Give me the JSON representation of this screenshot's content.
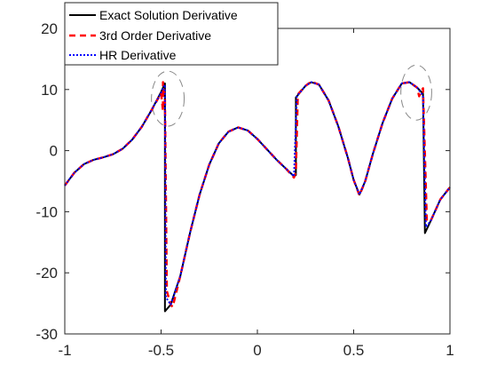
{
  "chart_data": {
    "type": "line",
    "title": "",
    "xlabel": "",
    "ylabel": "",
    "xlim": [
      -1,
      1
    ],
    "ylim": [
      -30,
      20
    ],
    "xticks": [
      -1,
      -0.5,
      0,
      0.5,
      1
    ],
    "xtick_labels": [
      "-1",
      "-0.5",
      "0",
      "0.5",
      "1"
    ],
    "yticks": [
      -30,
      -20,
      -10,
      0,
      10,
      20
    ],
    "ytick_labels": [
      "-30",
      "-20",
      "-10",
      "0",
      "10",
      "20"
    ],
    "grid": false,
    "legend_position": "top-left",
    "series": [
      {
        "name": "Exact Solution Derivative",
        "color": "#000000",
        "style": "solid",
        "points": [
          [
            -1,
            -5.7
          ],
          [
            -0.95,
            -3.6
          ],
          [
            -0.9,
            -2.2
          ],
          [
            -0.85,
            -1.5
          ],
          [
            -0.8,
            -1.1
          ],
          [
            -0.75,
            -0.6
          ],
          [
            -0.7,
            0.3
          ],
          [
            -0.65,
            1.8
          ],
          [
            -0.6,
            3.9
          ],
          [
            -0.55,
            6.6
          ],
          [
            -0.5,
            9.6
          ],
          [
            -0.48,
            11.0
          ],
          [
            -0.48,
            -26.3
          ],
          [
            -0.45,
            -25.2
          ],
          [
            -0.4,
            -20.5
          ],
          [
            -0.35,
            -13.5
          ],
          [
            -0.3,
            -7.2
          ],
          [
            -0.25,
            -2.3
          ],
          [
            -0.2,
            1.2
          ],
          [
            -0.15,
            3.1
          ],
          [
            -0.1,
            3.8
          ],
          [
            -0.05,
            3.3
          ],
          [
            0,
            1.9
          ],
          [
            0.05,
            0.2
          ],
          [
            0.1,
            -1.5
          ],
          [
            0.15,
            -3.0
          ],
          [
            0.19,
            -4.2
          ],
          [
            0.2,
            -4.0
          ],
          [
            0.2,
            8.7
          ],
          [
            0.25,
            10.6
          ],
          [
            0.28,
            11.2
          ],
          [
            0.32,
            10.8
          ],
          [
            0.37,
            8.2
          ],
          [
            0.42,
            4.0
          ],
          [
            0.47,
            -1.2
          ],
          [
            0.5,
            -4.8
          ],
          [
            0.53,
            -7.2
          ],
          [
            0.56,
            -5.0
          ],
          [
            0.6,
            -0.5
          ],
          [
            0.65,
            4.5
          ],
          [
            0.7,
            8.5
          ],
          [
            0.75,
            11.0
          ],
          [
            0.79,
            11.2
          ],
          [
            0.83,
            10.3
          ],
          [
            0.86,
            9.3
          ],
          [
            0.87,
            -13.5
          ],
          [
            0.9,
            -11.5
          ],
          [
            0.95,
            -8.0
          ],
          [
            1,
            -6.0
          ]
        ]
      },
      {
        "name": "3rd Order Derivative",
        "color": "#ff0000",
        "style": "dashed",
        "points": [
          [
            -1,
            -5.7
          ],
          [
            -0.95,
            -3.6
          ],
          [
            -0.9,
            -2.2
          ],
          [
            -0.85,
            -1.5
          ],
          [
            -0.8,
            -1.1
          ],
          [
            -0.75,
            -0.6
          ],
          [
            -0.7,
            0.3
          ],
          [
            -0.65,
            1.8
          ],
          [
            -0.6,
            3.9
          ],
          [
            -0.55,
            6.6
          ],
          [
            -0.5,
            9.4
          ],
          [
            -0.49,
            6.5
          ],
          [
            -0.49,
            11.2
          ],
          [
            -0.48,
            8.5
          ],
          [
            -0.47,
            -23.0
          ],
          [
            -0.45,
            -25.2
          ],
          [
            -0.44,
            -25.6
          ],
          [
            -0.4,
            -20.5
          ],
          [
            -0.35,
            -13.5
          ],
          [
            -0.3,
            -7.2
          ],
          [
            -0.25,
            -2.3
          ],
          [
            -0.2,
            1.2
          ],
          [
            -0.15,
            3.1
          ],
          [
            -0.1,
            3.8
          ],
          [
            -0.05,
            3.3
          ],
          [
            0,
            1.9
          ],
          [
            0.05,
            0.2
          ],
          [
            0.1,
            -1.5
          ],
          [
            0.15,
            -3.0
          ],
          [
            0.19,
            -4.4
          ],
          [
            0.2,
            -3.5
          ],
          [
            0.21,
            9.2
          ],
          [
            0.25,
            10.6
          ],
          [
            0.28,
            11.3
          ],
          [
            0.32,
            10.8
          ],
          [
            0.37,
            8.2
          ],
          [
            0.42,
            4.0
          ],
          [
            0.47,
            -1.2
          ],
          [
            0.5,
            -4.8
          ],
          [
            0.53,
            -7.3
          ],
          [
            0.56,
            -5.0
          ],
          [
            0.6,
            -0.5
          ],
          [
            0.65,
            4.5
          ],
          [
            0.7,
            8.5
          ],
          [
            0.75,
            11.0
          ],
          [
            0.79,
            11.2
          ],
          [
            0.83,
            10.3
          ],
          [
            0.84,
            8.9
          ],
          [
            0.86,
            10.2
          ],
          [
            0.88,
            -11.5
          ],
          [
            0.9,
            -11.5
          ],
          [
            0.95,
            -8.0
          ],
          [
            1,
            -6.0
          ]
        ]
      },
      {
        "name": "HR Derivative",
        "color": "#0000ff",
        "style": "dotted",
        "points": [
          [
            -1,
            -5.7
          ],
          [
            -0.95,
            -3.6
          ],
          [
            -0.9,
            -2.2
          ],
          [
            -0.85,
            -1.5
          ],
          [
            -0.8,
            -1.1
          ],
          [
            -0.75,
            -0.6
          ],
          [
            -0.7,
            0.3
          ],
          [
            -0.65,
            1.8
          ],
          [
            -0.6,
            3.9
          ],
          [
            -0.55,
            6.6
          ],
          [
            -0.5,
            9.5
          ],
          [
            -0.48,
            10.8
          ],
          [
            -0.475,
            -24.0
          ],
          [
            -0.45,
            -25.2
          ],
          [
            -0.4,
            -20.5
          ],
          [
            -0.35,
            -13.5
          ],
          [
            -0.3,
            -7.2
          ],
          [
            -0.25,
            -2.3
          ],
          [
            -0.2,
            1.2
          ],
          [
            -0.15,
            3.1
          ],
          [
            -0.1,
            3.8
          ],
          [
            -0.05,
            3.3
          ],
          [
            0,
            1.9
          ],
          [
            0.05,
            0.2
          ],
          [
            0.1,
            -1.5
          ],
          [
            0.15,
            -3.0
          ],
          [
            0.19,
            -4.2
          ],
          [
            0.205,
            8.9
          ],
          [
            0.25,
            10.6
          ],
          [
            0.28,
            11.2
          ],
          [
            0.32,
            10.8
          ],
          [
            0.37,
            8.2
          ],
          [
            0.42,
            4.0
          ],
          [
            0.47,
            -1.2
          ],
          [
            0.5,
            -4.8
          ],
          [
            0.53,
            -7.2
          ],
          [
            0.56,
            -5.0
          ],
          [
            0.6,
            -0.5
          ],
          [
            0.65,
            4.5
          ],
          [
            0.7,
            8.5
          ],
          [
            0.75,
            11.0
          ],
          [
            0.79,
            11.2
          ],
          [
            0.83,
            10.3
          ],
          [
            0.86,
            9.0
          ],
          [
            0.875,
            -12.5
          ],
          [
            0.9,
            -11.5
          ],
          [
            0.95,
            -8.0
          ],
          [
            1,
            -6.0
          ]
        ]
      }
    ],
    "annotations": [
      {
        "type": "dashed-ellipse",
        "color": "#888888",
        "cx": -0.465,
        "cy": 8.5,
        "rx": 0.085,
        "ry": 4.5
      },
      {
        "type": "dashed-ellipse",
        "color": "#888888",
        "cx": 0.825,
        "cy": 9.5,
        "rx": 0.08,
        "ry": 4.5
      }
    ]
  }
}
